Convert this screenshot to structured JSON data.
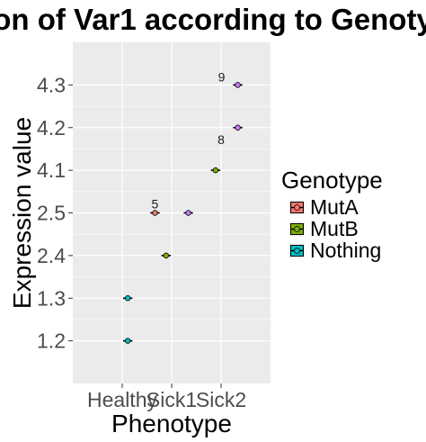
{
  "chart_data": {
    "type": "scatter",
    "title": "on of Var1 according to Genoty",
    "xlabel": "Phenotype",
    "ylabel": "Expression value",
    "categories": [
      "Healthy",
      "Sick1",
      "Sick2"
    ],
    "y_levels": [
      "1.2",
      "1.3",
      "2.4",
      "2.5",
      "4.1",
      "4.2",
      "4.3"
    ],
    "legend": {
      "title": "Genotype",
      "position": "right",
      "entries": [
        "MutA",
        "MutB",
        "Nothing"
      ]
    },
    "grid": true,
    "series": [
      {
        "name": "MutA",
        "color": "#F8766D",
        "points": [
          {
            "x": "Sick1",
            "y": "2.5"
          }
        ]
      },
      {
        "name": "MutB",
        "color": "#7CAE00",
        "points": [
          {
            "x": "Sick1",
            "y": "2.4"
          },
          {
            "x": "Sick2",
            "y": "4.1"
          }
        ]
      },
      {
        "name": "Nothing",
        "color": "#00BFC4",
        "points": [
          {
            "x": "Healthy",
            "y": "1.2"
          },
          {
            "x": "Healthy",
            "y": "1.3"
          }
        ]
      },
      {
        "name": "",
        "color": "#C77CFF",
        "points": [
          {
            "x": "Sick1",
            "y": "2.5"
          },
          {
            "x": "Sick2",
            "y": "4.2"
          },
          {
            "x": "Sick2",
            "y": "4.3"
          }
        ]
      }
    ],
    "annotations": [
      {
        "text": "5",
        "x": "Sick1",
        "y": "2.5"
      },
      {
        "text": "9",
        "x": "Sick2",
        "y": "4.3"
      },
      {
        "text": "8",
        "x": "Sick2",
        "y": "4.2"
      }
    ]
  }
}
